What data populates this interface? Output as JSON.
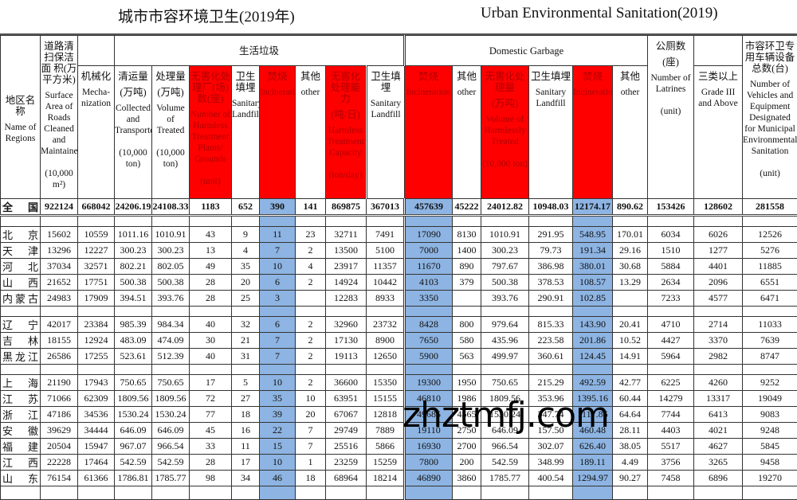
{
  "title": {
    "cn": "城市市容环境卫生(2019年)",
    "en": "Urban Environmental Sanitation(2019)"
  },
  "groups": {
    "cn": "生活垃圾",
    "en": "Domestic Garbage"
  },
  "columns": [
    {
      "cn": "地区名称",
      "en": "Name of Regions"
    },
    {
      "cn": "道路清扫保洁面 积(万平方米)",
      "en": "Surface Area of Roads Cleaned and Maintained",
      "unit": "(10,000 m²)"
    },
    {
      "cn": "机械化",
      "en": "Mecha-nization"
    },
    {
      "cn": "清运量",
      "cn_unit": "(万吨)",
      "en": "Collected and Transported",
      "unit": "(10,000 ton)"
    },
    {
      "cn": "处理量",
      "cn_unit": "(万吨)",
      "en": "Volume of Treated",
      "unit": "(10,000 ton)"
    },
    {
      "cn": "无害化处理厂(场)数(座)",
      "en": "Number of Harmless Treatment Plants/ Grounds",
      "unit": "(unit)",
      "highlight": "red"
    },
    {
      "cn": "卫生填埋",
      "en": "Sanitary Landfill"
    },
    {
      "cn": "焚烧",
      "en": "Incineration",
      "highlight": "red"
    },
    {
      "cn": "其他",
      "en": "other"
    },
    {
      "cn": "无害化处理能力",
      "cn_unit": "(吨/日)",
      "en": "Harmless Treatment Capacity",
      "unit": "(ton/day)",
      "highlight": "red"
    },
    {
      "cn": "卫生填埋",
      "en": "Sanitary Landfill"
    },
    {
      "cn": "焚烧",
      "en": "Incineration",
      "highlight": "red"
    },
    {
      "cn": "其他",
      "en": "other"
    },
    {
      "cn": "无害化处理量",
      "cn_unit": "(万吨)",
      "en": "Volume of Harmlessly Treated",
      "unit": "(10,000 ton)",
      "highlight": "red"
    },
    {
      "cn": "卫生填埋",
      "en": "Sanitary Landfill"
    },
    {
      "cn": "焚烧",
      "en": "Incineration",
      "highlight": "red"
    },
    {
      "cn": "其他",
      "en": "other"
    },
    {
      "cn": "公厕数",
      "cn_unit": "(座)",
      "en": "Number of Latrines",
      "unit": "(unit)"
    },
    {
      "cn": "三类以上",
      "en": "Grade III and Above"
    },
    {
      "cn": "市容环卫专用车辆设备总数(台)",
      "en": "Number of Vehicles and Equipment Designated for Municipal Environmental Sanitation",
      "unit": "(unit)"
    }
  ],
  "colors": {
    "header_highlight": "#ff0000",
    "column_highlight": "#8db4e2"
  },
  "highlight_columns": [
    7,
    11,
    15
  ],
  "total": [
    "全国",
    "922124",
    "668042",
    "24206.19",
    "24108.33",
    "1183",
    "652",
    "390",
    "141",
    "869875",
    "367013",
    "457639",
    "45222",
    "24012.82",
    "10948.03",
    "12174.17",
    "890.62",
    "153426",
    "128602",
    "281558"
  ],
  "row_groups": [
    [
      [
        "北京",
        "15602",
        "10559",
        "1011.16",
        "1010.91",
        "43",
        "9",
        "11",
        "23",
        "32711",
        "7491",
        "17090",
        "8130",
        "1010.91",
        "291.95",
        "548.95",
        "170.01",
        "6034",
        "6026",
        "12526"
      ],
      [
        "天津",
        "13296",
        "12227",
        "300.23",
        "300.23",
        "13",
        "4",
        "7",
        "2",
        "13500",
        "5100",
        "7000",
        "1400",
        "300.23",
        "79.73",
        "191.34",
        "29.16",
        "1510",
        "1277",
        "5276"
      ],
      [
        "河北",
        "37034",
        "32571",
        "802.21",
        "802.05",
        "49",
        "35",
        "10",
        "4",
        "23917",
        "11357",
        "11670",
        "890",
        "797.67",
        "386.98",
        "380.01",
        "30.68",
        "5884",
        "4401",
        "11885"
      ],
      [
        "山西",
        "21652",
        "17751",
        "500.38",
        "500.38",
        "28",
        "20",
        "6",
        "2",
        "14924",
        "10442",
        "4103",
        "379",
        "500.38",
        "378.53",
        "108.57",
        "13.29",
        "2634",
        "2096",
        "6551"
      ],
      [
        "内蒙古",
        "24983",
        "17909",
        "394.51",
        "393.76",
        "28",
        "25",
        "3",
        "",
        "12283",
        "8933",
        "3350",
        "",
        "393.76",
        "290.91",
        "102.85",
        "",
        "7233",
        "4577",
        "6471"
      ]
    ],
    [
      [
        "辽宁",
        "42017",
        "23384",
        "985.39",
        "984.34",
        "40",
        "32",
        "6",
        "2",
        "32960",
        "23732",
        "8428",
        "800",
        "979.64",
        "815.33",
        "143.90",
        "20.41",
        "4710",
        "2714",
        "11033"
      ],
      [
        "吉林",
        "18155",
        "12924",
        "483.09",
        "474.09",
        "30",
        "21",
        "7",
        "2",
        "17130",
        "8900",
        "7650",
        "580",
        "435.96",
        "223.58",
        "201.86",
        "10.52",
        "4427",
        "3370",
        "7639"
      ],
      [
        "黑龙江",
        "26586",
        "17255",
        "523.61",
        "512.39",
        "40",
        "31",
        "7",
        "2",
        "19113",
        "12650",
        "5900",
        "563",
        "499.97",
        "360.61",
        "124.45",
        "14.91",
        "5964",
        "2982",
        "8747"
      ]
    ],
    [
      [
        "上海",
        "21190",
        "17943",
        "750.65",
        "750.65",
        "17",
        "5",
        "10",
        "2",
        "36600",
        "15350",
        "19300",
        "1950",
        "750.65",
        "215.29",
        "492.59",
        "42.77",
        "6225",
        "4260",
        "9252"
      ],
      [
        "江苏",
        "71066",
        "62309",
        "1809.56",
        "1809.56",
        "72",
        "27",
        "35",
        "10",
        "63951",
        "15155",
        "46810",
        "1986",
        "1809.56",
        "353.96",
        "1395.16",
        "60.44",
        "14279",
        "13317",
        "19049"
      ],
      [
        "浙江",
        "47186",
        "34536",
        "1530.24",
        "1530.24",
        "77",
        "18",
        "39",
        "20",
        "67067",
        "12818",
        "49685",
        "4565",
        "1530.24",
        "347.74",
        "1117.86",
        "64.64",
        "7744",
        "6413",
        "9083"
      ],
      [
        "安徽",
        "39629",
        "34444",
        "646.09",
        "646.09",
        "45",
        "16",
        "22",
        "7",
        "29749",
        "7889",
        "19110",
        "2750",
        "646.09",
        "157.50",
        "460.48",
        "28.11",
        "4403",
        "4021",
        "9248"
      ],
      [
        "福建",
        "20504",
        "15947",
        "967.07",
        "966.54",
        "33",
        "11",
        "15",
        "7",
        "25516",
        "5866",
        "16930",
        "2700",
        "966.54",
        "302.07",
        "626.40",
        "38.05",
        "5517",
        "4627",
        "5845"
      ],
      [
        "江西",
        "22228",
        "17464",
        "542.59",
        "542.59",
        "28",
        "17",
        "10",
        "1",
        "23259",
        "15259",
        "7800",
        "200",
        "542.59",
        "348.99",
        "189.11",
        "4.49",
        "3756",
        "3265",
        "9458"
      ],
      [
        "山东",
        "76154",
        "61366",
        "1786.81",
        "1785.77",
        "98",
        "34",
        "46",
        "18",
        "68964",
        "18214",
        "46890",
        "3860",
        "1785.77",
        "400.54",
        "1294.97",
        "90.27",
        "7458",
        "6896",
        "19270"
      ]
    ]
  ],
  "watermark": "zhztmfj.com"
}
